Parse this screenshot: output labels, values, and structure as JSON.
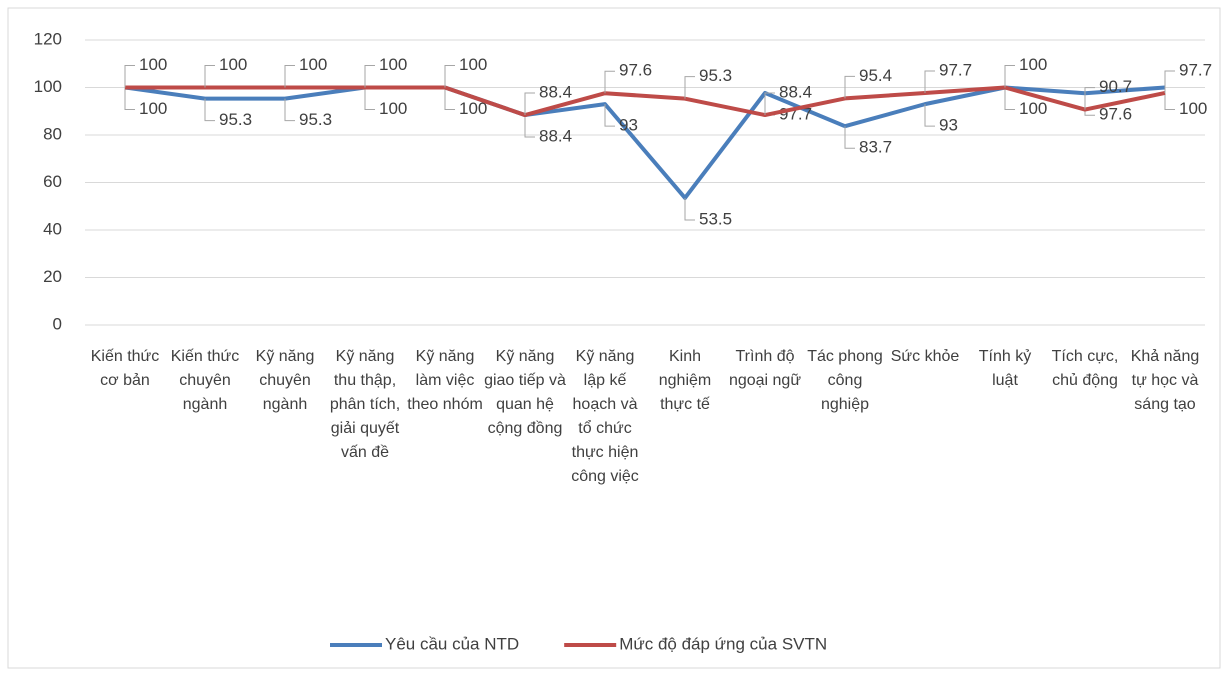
{
  "chart_data": {
    "type": "line",
    "categories": [
      "Kiến thức cơ bản",
      "Kiến thức chuyên ngành",
      "Kỹ năng chuyên ngành",
      "Kỹ năng thu thập, phân tích, giải quyết vấn đề",
      "Kỹ năng làm việc theo nhóm",
      "Kỹ năng giao tiếp và quan hệ cộng đồng",
      "Kỹ năng lập kế hoạch và tổ chức thực hiện công việc",
      "Kinh nghiệm thực tế",
      "Trình độ ngoại ngữ",
      "Tác phong công nghiệp",
      "Sức khỏe",
      "Tính kỷ luật",
      "Tích cực, chủ động",
      "Khả năng tự học và sáng tạo"
    ],
    "series": [
      {
        "name": "Yêu cầu của NTD",
        "color": "#4a7ebb",
        "values": [
          100,
          95.3,
          95.3,
          100,
          100,
          88.4,
          93,
          53.5,
          97.7,
          83.7,
          93,
          100,
          97.6,
          100
        ]
      },
      {
        "name": "Mức độ đáp ứng của SVTN",
        "color": "#be4b48",
        "values": [
          100,
          100,
          100,
          100,
          100,
          88.4,
          97.6,
          95.3,
          88.4,
          95.4,
          97.7,
          100,
          90.7,
          97.7
        ]
      }
    ],
    "ylim": [
      0,
      120
    ],
    "yticks": [
      0,
      20,
      40,
      60,
      80,
      100,
      120
    ],
    "grid": true,
    "legend": "bottom"
  }
}
